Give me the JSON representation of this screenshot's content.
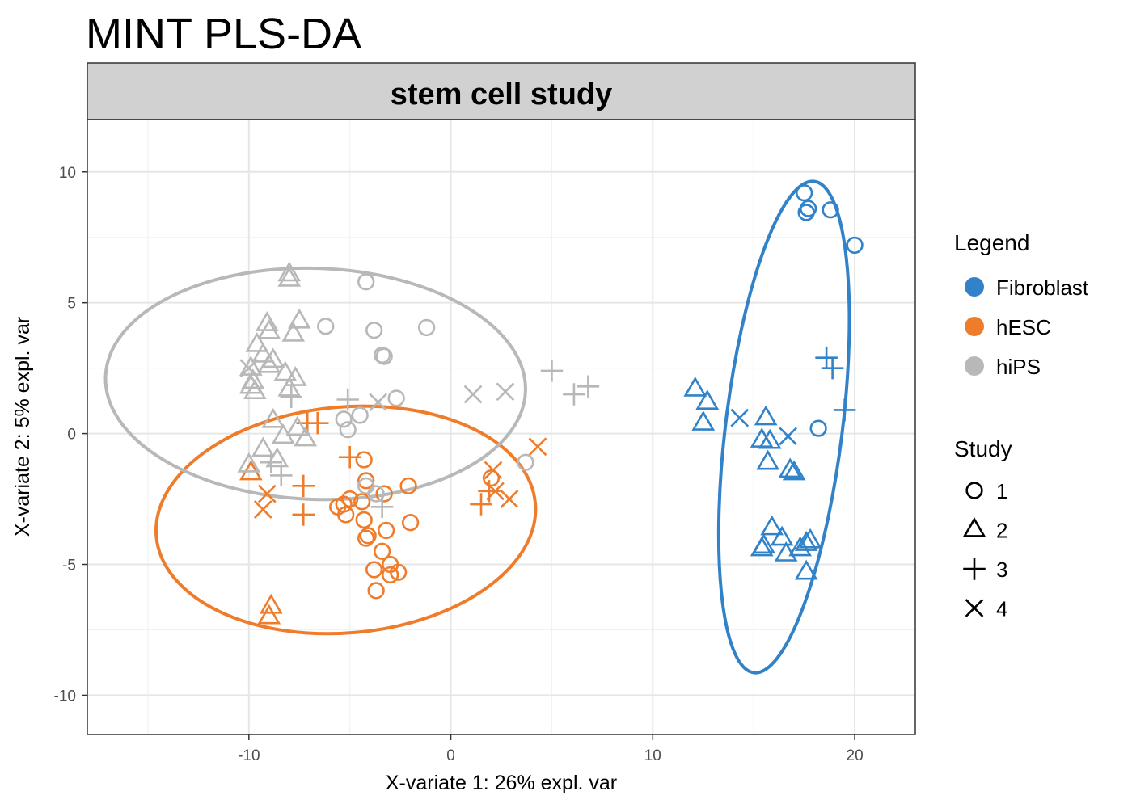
{
  "chart_data": {
    "type": "scatter",
    "title": "MINT PLS-DA",
    "facet_label": "stem cell study",
    "xlabel": "X-variate 1: 26% expl. var",
    "ylabel": "X-variate 2: 5% expl. var",
    "xlim": [
      -18,
      23
    ],
    "ylim": [
      -11.5,
      12
    ],
    "xticks": [
      -10,
      0,
      10,
      20
    ],
    "yticks": [
      -10,
      -5,
      0,
      5,
      10
    ],
    "xtick_labels": [
      "-10",
      "0",
      "10",
      "20"
    ],
    "ytick_labels": [
      "-10",
      "-5",
      "0",
      "5",
      "10"
    ],
    "grid": true,
    "legend_position": "right",
    "legend": {
      "title": "Legend",
      "entries": [
        {
          "label": "Fibroblast",
          "color": "#3182c9"
        },
        {
          "label": "hESC",
          "color": "#ef7c2a"
        },
        {
          "label": "hiPS",
          "color": "#b8b8b8"
        }
      ]
    },
    "shape_legend": {
      "title": "Study",
      "entries": [
        {
          "label": "1",
          "shape": "circle"
        },
        {
          "label": "2",
          "shape": "triangle"
        },
        {
          "label": "3",
          "shape": "plus"
        },
        {
          "label": "4",
          "shape": "cross"
        }
      ]
    },
    "series": [
      {
        "name": "Fibroblast",
        "color": "#3182c9",
        "ellipse": {
          "cx": 16.5,
          "cy": 0.25,
          "rx": 9.7,
          "ry": 2.8,
          "angle_deg": 83
        },
        "points": [
          {
            "x": 17.5,
            "y": 9.2,
            "study": "1"
          },
          {
            "x": 17.7,
            "y": 8.6,
            "study": "1"
          },
          {
            "x": 17.6,
            "y": 8.45,
            "study": "1"
          },
          {
            "x": 18.8,
            "y": 8.55,
            "study": "1"
          },
          {
            "x": 20.0,
            "y": 7.2,
            "study": "1"
          },
          {
            "x": 18.2,
            "y": 0.2,
            "study": "1"
          },
          {
            "x": 12.1,
            "y": 1.7,
            "study": "2"
          },
          {
            "x": 12.7,
            "y": 1.2,
            "study": "2"
          },
          {
            "x": 12.5,
            "y": 0.4,
            "study": "2"
          },
          {
            "x": 15.6,
            "y": 0.6,
            "study": "2"
          },
          {
            "x": 15.4,
            "y": -0.25,
            "study": "2"
          },
          {
            "x": 15.8,
            "y": -0.3,
            "study": "2"
          },
          {
            "x": 15.7,
            "y": -1.1,
            "study": "2"
          },
          {
            "x": 16.8,
            "y": -1.4,
            "study": "2"
          },
          {
            "x": 17.0,
            "y": -1.5,
            "study": "2"
          },
          {
            "x": 15.9,
            "y": -3.6,
            "study": "2"
          },
          {
            "x": 15.5,
            "y": -4.3,
            "study": "2"
          },
          {
            "x": 15.4,
            "y": -4.4,
            "study": "2"
          },
          {
            "x": 16.4,
            "y": -4.0,
            "study": "2"
          },
          {
            "x": 16.6,
            "y": -4.6,
            "study": "2"
          },
          {
            "x": 17.3,
            "y": -4.4,
            "study": "2"
          },
          {
            "x": 17.6,
            "y": -4.2,
            "study": "2"
          },
          {
            "x": 17.8,
            "y": -4.1,
            "study": "2"
          },
          {
            "x": 17.6,
            "y": -5.3,
            "study": "2"
          },
          {
            "x": 18.6,
            "y": 2.9,
            "study": "3"
          },
          {
            "x": 18.9,
            "y": 2.5,
            "study": "3"
          },
          {
            "x": 19.5,
            "y": 0.9,
            "study": "3"
          },
          {
            "x": 14.3,
            "y": 0.6,
            "study": "4"
          },
          {
            "x": 16.7,
            "y": -0.1,
            "study": "4"
          }
        ]
      },
      {
        "name": "hESC",
        "color": "#ef7c2a",
        "ellipse": {
          "cx": -5.2,
          "cy": -3.3,
          "rx": 9.2,
          "ry": 4.4,
          "angle_deg": 5
        },
        "points": [
          {
            "x": -4.3,
            "y": -1.0,
            "study": "1"
          },
          {
            "x": -4.2,
            "y": -1.8,
            "study": "1"
          },
          {
            "x": -2.1,
            "y": -2.0,
            "study": "1"
          },
          {
            "x": -5.0,
            "y": -2.5,
            "study": "1"
          },
          {
            "x": -4.4,
            "y": -2.6,
            "study": "1"
          },
          {
            "x": -3.3,
            "y": -2.3,
            "study": "1"
          },
          {
            "x": -5.3,
            "y": -2.7,
            "study": "1"
          },
          {
            "x": -5.6,
            "y": -2.8,
            "study": "1"
          },
          {
            "x": -5.2,
            "y": -3.1,
            "study": "1"
          },
          {
            "x": -4.3,
            "y": -3.3,
            "study": "1"
          },
          {
            "x": -2.0,
            "y": -3.4,
            "study": "1"
          },
          {
            "x": -3.2,
            "y": -3.7,
            "study": "1"
          },
          {
            "x": -4.1,
            "y": -3.9,
            "study": "1"
          },
          {
            "x": -4.2,
            "y": -4.0,
            "study": "1"
          },
          {
            "x": -3.4,
            "y": -4.5,
            "study": "1"
          },
          {
            "x": -3.0,
            "y": -5.0,
            "study": "1"
          },
          {
            "x": -3.8,
            "y": -5.2,
            "study": "1"
          },
          {
            "x": -3.0,
            "y": -5.4,
            "study": "1"
          },
          {
            "x": -2.6,
            "y": -5.3,
            "study": "1"
          },
          {
            "x": -3.7,
            "y": -6.0,
            "study": "1"
          },
          {
            "x": 2.0,
            "y": -1.7,
            "study": "1"
          },
          {
            "x": -8.9,
            "y": -6.6,
            "study": "2"
          },
          {
            "x": -9.0,
            "y": -7.0,
            "study": "2"
          },
          {
            "x": -9.9,
            "y": -1.5,
            "study": "2"
          },
          {
            "x": -6.6,
            "y": 0.4,
            "study": "3"
          },
          {
            "x": -7.1,
            "y": 0.4,
            "study": "3"
          },
          {
            "x": -5.0,
            "y": -0.9,
            "study": "3"
          },
          {
            "x": -7.3,
            "y": -2.0,
            "study": "3"
          },
          {
            "x": -7.3,
            "y": -3.1,
            "study": "3"
          },
          {
            "x": 1.5,
            "y": -2.7,
            "study": "3"
          },
          {
            "x": 1.9,
            "y": -2.2,
            "study": "3"
          },
          {
            "x": -9.1,
            "y": -2.3,
            "study": "4"
          },
          {
            "x": -9.3,
            "y": -2.9,
            "study": "4"
          },
          {
            "x": 2.1,
            "y": -1.4,
            "study": "4"
          },
          {
            "x": 2.2,
            "y": -2.2,
            "study": "4"
          },
          {
            "x": 2.9,
            "y": -2.5,
            "study": "4"
          },
          {
            "x": 4.3,
            "y": -0.5,
            "study": "4"
          }
        ]
      },
      {
        "name": "hiPS",
        "color": "#b8b8b8",
        "ellipse": {
          "cx": -6.7,
          "cy": 1.9,
          "rx": 10.3,
          "ry": 4.45,
          "angle_deg": -2
        },
        "points": [
          {
            "x": -4.2,
            "y": 5.8,
            "study": "1"
          },
          {
            "x": -6.2,
            "y": 4.1,
            "study": "1"
          },
          {
            "x": -3.8,
            "y": 3.95,
            "study": "1"
          },
          {
            "x": -1.2,
            "y": 4.05,
            "study": "1"
          },
          {
            "x": -3.4,
            "y": 3.0,
            "study": "1"
          },
          {
            "x": -3.3,
            "y": 2.95,
            "study": "1"
          },
          {
            "x": -2.7,
            "y": 1.35,
            "study": "1"
          },
          {
            "x": -4.5,
            "y": 0.7,
            "study": "1"
          },
          {
            "x": -5.3,
            "y": 0.55,
            "study": "1"
          },
          {
            "x": -5.1,
            "y": 0.15,
            "study": "1"
          },
          {
            "x": -4.2,
            "y": -2.0,
            "study": "1"
          },
          {
            "x": -3.7,
            "y": -2.3,
            "study": "1"
          },
          {
            "x": 3.7,
            "y": -1.1,
            "study": "1"
          },
          {
            "x": -8.0,
            "y": 6.1,
            "study": "2"
          },
          {
            "x": -8.0,
            "y": 5.9,
            "study": "2"
          },
          {
            "x": -9.1,
            "y": 4.2,
            "study": "2"
          },
          {
            "x": -9.0,
            "y": 3.9,
            "study": "2"
          },
          {
            "x": -7.5,
            "y": 4.3,
            "study": "2"
          },
          {
            "x": -7.8,
            "y": 3.8,
            "study": "2"
          },
          {
            "x": -9.6,
            "y": 3.4,
            "study": "2"
          },
          {
            "x": -9.3,
            "y": 3.0,
            "study": "2"
          },
          {
            "x": -8.8,
            "y": 2.8,
            "study": "2"
          },
          {
            "x": -9.9,
            "y": 2.5,
            "study": "2"
          },
          {
            "x": -9.0,
            "y": 2.6,
            "study": "2"
          },
          {
            "x": -8.2,
            "y": 2.3,
            "study": "2"
          },
          {
            "x": -7.7,
            "y": 2.1,
            "study": "2"
          },
          {
            "x": -9.8,
            "y": 2.0,
            "study": "2"
          },
          {
            "x": -9.9,
            "y": 1.8,
            "study": "2"
          },
          {
            "x": -9.7,
            "y": 1.6,
            "study": "2"
          },
          {
            "x": -8.0,
            "y": 1.7,
            "study": "2"
          },
          {
            "x": -8.8,
            "y": 0.5,
            "study": "2"
          },
          {
            "x": -7.6,
            "y": 0.2,
            "study": "2"
          },
          {
            "x": -7.2,
            "y": -0.2,
            "study": "2"
          },
          {
            "x": -8.3,
            "y": -0.1,
            "study": "2"
          },
          {
            "x": -9.3,
            "y": -0.6,
            "study": "2"
          },
          {
            "x": -10.0,
            "y": -1.2,
            "study": "2"
          },
          {
            "x": -8.6,
            "y": -1.0,
            "study": "2"
          },
          {
            "x": -7.9,
            "y": 1.4,
            "study": "3"
          },
          {
            "x": -8.9,
            "y": -1.1,
            "study": "3"
          },
          {
            "x": -8.4,
            "y": -1.6,
            "study": "3"
          },
          {
            "x": -5.1,
            "y": 1.3,
            "study": "3"
          },
          {
            "x": -3.4,
            "y": -2.8,
            "study": "3"
          },
          {
            "x": 5.0,
            "y": 2.4,
            "study": "3"
          },
          {
            "x": 6.1,
            "y": 1.5,
            "study": "3"
          },
          {
            "x": 6.8,
            "y": 1.8,
            "study": "3"
          },
          {
            "x": -10.0,
            "y": 2.5,
            "study": "4"
          },
          {
            "x": -3.6,
            "y": 1.2,
            "study": "4"
          },
          {
            "x": 1.1,
            "y": 1.5,
            "study": "4"
          },
          {
            "x": 2.7,
            "y": 1.6,
            "study": "4"
          }
        ]
      }
    ]
  }
}
